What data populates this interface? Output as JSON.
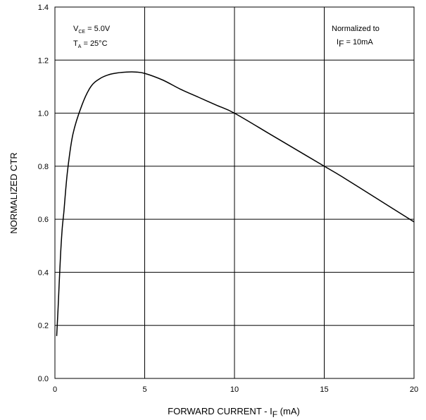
{
  "chart_data": {
    "type": "line",
    "xlabel": "FORWARD CURRENT - I",
    "xlabel_sub": "F",
    "xlabel_unit": " (mA)",
    "ylabel": "NORMALIZED CTR",
    "xlim": [
      0,
      20
    ],
    "ylim": [
      0.0,
      1.4
    ],
    "x_ticks": [
      0,
      5,
      10,
      15,
      20
    ],
    "x_tick_labels": [
      "0",
      "5",
      "10",
      "15",
      "20"
    ],
    "y_ticks": [
      0.0,
      0.2,
      0.4,
      0.6,
      0.8,
      1.0,
      1.2,
      1.4
    ],
    "y_tick_labels": [
      "0.0",
      "0.2",
      "0.4",
      "0.6",
      "0.8",
      "1.0",
      "1.2",
      "1.4"
    ],
    "grid": true,
    "annotations": {
      "vce": {
        "main": "V",
        "sub": "CE",
        "value": " = 5.0V"
      },
      "ta": {
        "main": "T",
        "sub": "A",
        "value": " = 25°C"
      },
      "norm_line1": "Normalized to",
      "norm_line2_main": "I",
      "norm_line2_sub": "F",
      "norm_line2_value": " = 10mA"
    },
    "series": [
      {
        "x": [
          0.1,
          0.2,
          0.3,
          0.4,
          0.5,
          0.7,
          1.0,
          1.5,
          2.0,
          2.5,
          3.0,
          3.5,
          4.0,
          4.5,
          5.0,
          6.0,
          7.0,
          8.0,
          9.0,
          10.0,
          12.0,
          14.0,
          15.0,
          16.0,
          18.0,
          20.0
        ],
        "y": [
          0.16,
          0.3,
          0.45,
          0.56,
          0.63,
          0.78,
          0.92,
          1.03,
          1.1,
          1.13,
          1.145,
          1.152,
          1.155,
          1.155,
          1.15,
          1.125,
          1.09,
          1.06,
          1.03,
          1.0,
          0.92,
          0.84,
          0.8,
          0.76,
          0.675,
          0.59
        ]
      }
    ]
  }
}
